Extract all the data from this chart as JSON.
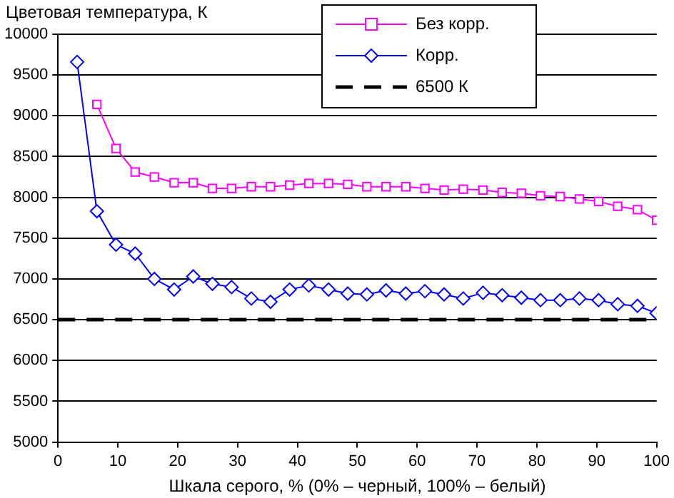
{
  "chart_data": {
    "type": "line",
    "ylabel": "Цветовая температура, К",
    "xlabel": "Шкала серого, % (0% – черный, 100% – белый)",
    "x": [
      3.2,
      6.5,
      9.7,
      12.9,
      16.1,
      19.4,
      22.6,
      25.8,
      29.0,
      32.3,
      35.5,
      38.7,
      41.9,
      45.2,
      48.4,
      51.6,
      54.8,
      58.1,
      61.3,
      64.5,
      67.7,
      71.0,
      74.2,
      77.4,
      80.6,
      83.9,
      87.1,
      90.3,
      93.5,
      96.8,
      100
    ],
    "series": [
      {
        "name": "Без корр.",
        "color": "#ff00ff",
        "marker": "square",
        "values": [
          null,
          9140,
          8600,
          8310,
          8250,
          8180,
          8180,
          8110,
          8110,
          8130,
          8130,
          8150,
          8170,
          8170,
          8160,
          8130,
          8130,
          8130,
          8110,
          8090,
          8100,
          8090,
          8060,
          8050,
          8020,
          8010,
          7980,
          7950,
          7890,
          7850,
          7720
        ]
      },
      {
        "name": "Корр.",
        "color": "#0000ff",
        "marker": "diamond",
        "values": [
          9660,
          7830,
          7420,
          7310,
          7000,
          6870,
          7030,
          6940,
          6900,
          6760,
          6720,
          6870,
          6920,
          6870,
          6820,
          6810,
          6860,
          6820,
          6850,
          6810,
          6760,
          6830,
          6800,
          6770,
          6740,
          6740,
          6760,
          6740,
          6690,
          6670,
          6580
        ]
      }
    ],
    "ref_lines": [
      {
        "axis": "y",
        "value": 6500,
        "label": "6500 К",
        "color": "#000000",
        "line_style": "dashed"
      }
    ],
    "xlim": [
      0,
      100
    ],
    "xticks": [
      0,
      10,
      20,
      30,
      40,
      50,
      60,
      70,
      80,
      90,
      100
    ],
    "ylim": [
      5000,
      10000
    ],
    "yticks": [
      5000,
      5500,
      6000,
      6500,
      7000,
      7500,
      8000,
      8500,
      9000,
      9500,
      10000
    ],
    "grid": "y",
    "legend": "top right",
    "line_style": "solid"
  }
}
